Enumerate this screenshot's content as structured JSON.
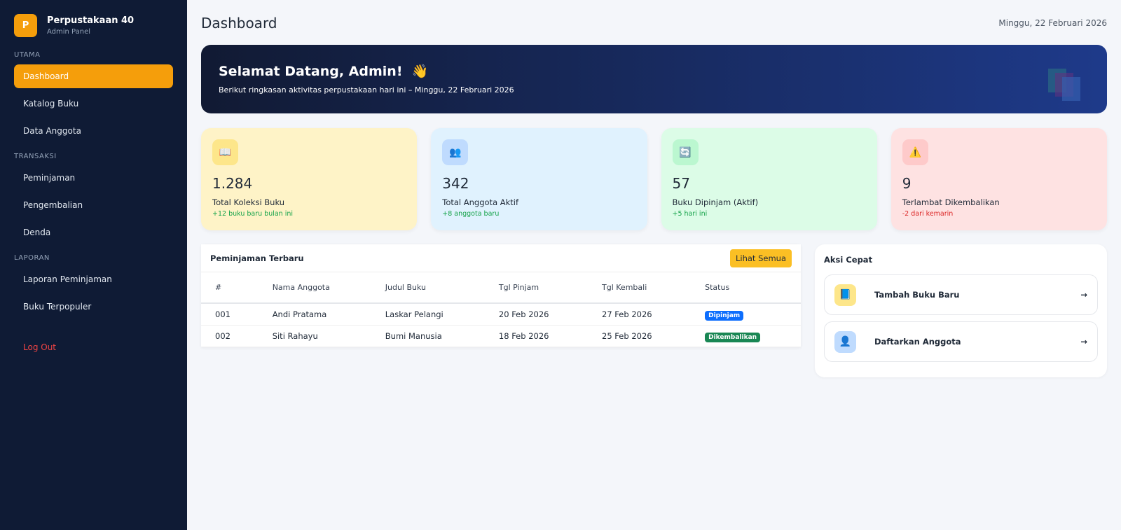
{
  "sidebar": {
    "logo": "P",
    "name": "Perpustakaan 40",
    "subtitle": "Admin Panel",
    "sections": [
      {
        "title": "UTAMA",
        "items": [
          "Dashboard",
          "Katalog Buku",
          "Data Anggota"
        ]
      },
      {
        "title": "TRANSAKSI",
        "items": [
          "Peminjaman",
          "Pengembalian",
          "Denda"
        ]
      },
      {
        "title": "LAPORAN",
        "items": [
          "Laporan Peminjaman",
          "Buku Terpopuler"
        ]
      }
    ],
    "logout": "Log Out"
  },
  "header": {
    "title": "Dashboard",
    "date": "Minggu, 22 Februari 2026"
  },
  "banner": {
    "title": "Selamat Datang, Admin!",
    "emoji": "👋",
    "subtitle": "Berikut ringkasan aktivitas perpustakaan hari ini – Minggu, 22 Februari 2026"
  },
  "stats": [
    {
      "icon": "📖",
      "value": "1.284",
      "label": "Total Koleksi Buku",
      "note": "+12 buku baru bulan ini"
    },
    {
      "icon": "👥",
      "value": "342",
      "label": "Total Anggota Aktif",
      "note": "+8 anggota baru"
    },
    {
      "icon": "🔄",
      "value": "57",
      "label": "Buku Dipinjam (Aktif)",
      "note": "+5 hari ini"
    },
    {
      "icon": "⚠️",
      "value": "9",
      "label": "Terlambat Dikembalikan",
      "note": "-2 dari kemarin"
    }
  ],
  "table": {
    "title": "Peminjaman Terbaru",
    "button": "Lihat Semua",
    "columns": [
      "#",
      "Nama Anggota",
      "Judul Buku",
      "Tgl Pinjam",
      "Tgl Kembali",
      "Status"
    ],
    "rows": [
      [
        "001",
        "Andi Pratama",
        "Laskar Pelangi",
        "20 Feb 2026",
        "27 Feb 2026",
        "Dipinjam"
      ],
      [
        "002",
        "Siti Rahayu",
        "Bumi Manusia",
        "18 Feb 2026",
        "25 Feb 2026",
        "Dikembalikan"
      ]
    ]
  },
  "quick_actions": {
    "title": "Aksi Cepat",
    "items": [
      {
        "icon": "📘",
        "label": "Tambah Buku Baru",
        "arrow": "→"
      },
      {
        "icon": "👤",
        "label": "Daftarkan Anggota",
        "arrow": "→"
      }
    ]
  }
}
